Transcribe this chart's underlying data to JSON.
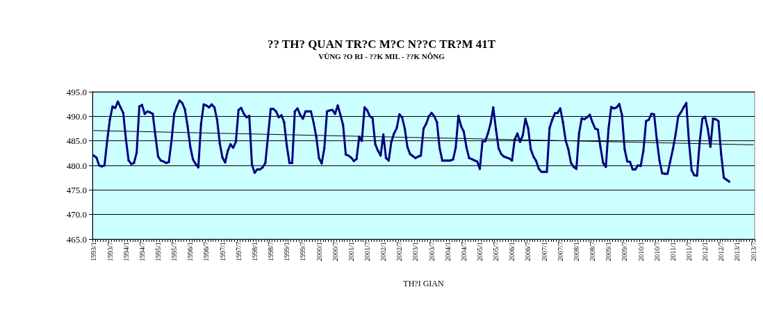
{
  "chart_data": {
    "type": "line",
    "title": "?? TH? QUAN TR?C M?C N??C TR?M 41T",
    "subtitle": "VÙNG ?O RI - ??K MIL - ??K NÔNG",
    "xlabel": "TH?I GIAN",
    "categories": [
      "1993/1",
      null,
      null,
      null,
      null,
      null,
      "1993/7",
      null,
      null,
      null,
      null,
      null,
      "1994/1",
      null,
      null,
      null,
      null,
      null,
      "1994/7",
      null,
      null,
      null,
      null,
      null,
      "1995/1",
      null,
      null,
      null,
      null,
      null,
      "1995/7",
      null,
      null,
      null,
      null,
      null,
      "1996/1",
      null,
      null,
      null,
      null,
      null,
      "1996/7",
      null,
      null,
      null,
      null,
      null,
      "1997/1",
      null,
      null,
      null,
      null,
      null,
      "1997/7",
      null,
      null,
      null,
      null,
      null,
      "1998/1",
      null,
      null,
      null,
      null,
      null,
      "1998/7",
      null,
      null,
      null,
      null,
      null,
      "1999/1",
      null,
      null,
      null,
      null,
      null,
      "1999/7",
      null,
      null,
      null,
      null,
      null,
      "2000/1",
      null,
      null,
      null,
      null,
      null,
      "2000/7",
      null,
      null,
      null,
      null,
      null,
      "2001/1",
      null,
      null,
      null,
      null,
      null,
      "2001/7",
      null,
      null,
      null,
      null,
      null,
      "2002/1",
      null,
      null,
      null,
      null,
      null,
      "2002/7",
      null,
      null,
      null,
      null,
      null,
      "2003/1",
      null,
      null,
      null,
      null,
      null,
      "2003/7",
      null,
      null,
      null,
      null,
      null,
      "2004/1",
      null,
      null,
      null,
      null,
      null,
      "2004/7",
      null,
      null,
      null,
      null,
      null,
      "2005/1",
      null,
      null,
      null,
      null,
      null,
      "2005/7",
      null,
      null,
      null,
      null,
      null,
      "2006/1",
      null,
      null,
      null,
      null,
      null,
      "2006/7",
      null,
      null,
      null,
      null,
      null,
      "2007/1",
      null,
      null,
      null,
      null,
      null,
      "2007/7",
      null,
      null,
      null,
      null,
      null,
      "2008/1",
      null,
      null,
      null,
      null,
      null,
      "2008/7",
      null,
      null,
      null,
      null,
      null,
      "2009/1",
      null,
      null,
      null,
      null,
      null,
      "2009/7",
      null,
      null,
      null,
      null,
      null,
      "2010/1",
      null,
      null,
      null,
      null,
      null,
      "2010/7",
      null,
      null,
      null,
      null,
      null,
      "2011/1",
      null,
      null,
      null,
      null,
      null,
      "2011/7",
      null,
      null,
      null,
      null,
      null,
      "2012/1",
      null,
      null,
      null,
      null,
      null,
      "2012/7",
      null,
      null,
      null,
      null,
      null,
      "2013/1",
      null,
      null,
      null,
      null,
      null,
      "2013/7"
    ],
    "series": [
      {
        "color": "#000080",
        "marker": "diamond",
        "values": [
          482.0,
          481.6,
          480.0,
          479.8,
          480.0,
          485.0,
          489.3,
          492.0,
          491.7,
          493.0,
          491.8,
          490.7,
          485.3,
          481.0,
          480.3,
          480.5,
          482.6,
          492.0,
          492.3,
          490.5,
          491.0,
          490.8,
          490.5,
          486.0,
          481.8,
          481.0,
          480.8,
          480.5,
          480.7,
          485.0,
          490.5,
          492.0,
          493.2,
          492.7,
          491.4,
          488.0,
          483.8,
          481.2,
          480.3,
          479.6,
          488.4,
          492.4,
          492.2,
          491.8,
          492.4,
          491.8,
          489.3,
          484.5,
          481.6,
          480.6,
          483.0,
          484.3,
          483.6,
          484.8,
          491.3,
          491.7,
          490.5,
          489.8,
          490.1,
          480.2,
          478.5,
          479.2,
          479.2,
          479.6,
          480.5,
          486.0,
          491.5,
          491.5,
          491.0,
          489.8,
          490.2,
          488.8,
          484.0,
          480.5,
          480.5,
          491.0,
          491.6,
          490.3,
          489.5,
          491.0,
          491.0,
          491.0,
          488.7,
          485.8,
          481.5,
          480.4,
          483.5,
          491.0,
          491.2,
          491.3,
          490.5,
          492.2,
          490.3,
          488.2,
          482.2,
          482.0,
          481.6,
          480.9,
          481.3,
          485.8,
          485.0,
          491.8,
          491.2,
          490.0,
          489.6,
          484.3,
          483.0,
          482.0,
          486.3,
          481.5,
          481.0,
          484.8,
          486.5,
          487.6,
          490.4,
          489.8,
          487.5,
          483.7,
          482.3,
          481.9,
          481.5,
          481.8,
          482.0,
          487.5,
          488.5,
          490.0,
          490.7,
          490.0,
          488.8,
          483.5,
          481.0,
          481.0,
          481.0,
          481.0,
          481.2,
          483.6,
          490.1,
          488.0,
          486.9,
          483.7,
          481.5,
          481.3,
          481.0,
          480.8,
          479.3,
          485.0,
          484.9,
          486.5,
          488.5,
          491.8,
          487.4,
          483.5,
          482.3,
          481.8,
          481.6,
          481.4,
          481.0,
          485.3,
          486.5,
          484.8,
          486.1,
          489.5,
          487.6,
          483.3,
          481.8,
          480.9,
          479.3,
          478.7,
          478.7,
          478.7,
          487.6,
          489.3,
          490.6,
          490.7,
          491.6,
          488.8,
          485.1,
          483.3,
          480.5,
          479.7,
          479.3,
          486.5,
          489.6,
          489.4,
          489.8,
          490.3,
          488.8,
          487.5,
          487.3,
          483.7,
          480.5,
          479.7,
          487.5,
          491.9,
          491.6,
          491.8,
          492.5,
          490.3,
          483.3,
          480.8,
          480.7,
          479.2,
          479.2,
          480.0,
          479.9,
          483.0,
          489.0,
          489.3,
          490.5,
          490.4,
          485.3,
          481.0,
          478.4,
          478.3,
          478.3,
          480.8,
          483.3,
          486.3,
          490.0,
          490.8,
          491.8,
          492.7,
          484.8,
          479.0,
          478.0,
          477.9,
          484.8,
          489.5,
          489.9,
          487.5,
          483.8,
          489.5,
          489.4,
          489.0,
          482.3,
          477.5,
          477.1,
          476.7,
          null,
          null,
          null,
          null,
          null,
          null,
          null,
          null,
          null
        ]
      },
      {
        "color": "#000000",
        "marker": "none",
        "x": [
          "1993/1",
          "2013/7"
        ],
        "values": [
          487.1,
          484.2
        ]
      }
    ],
    "ylim": [
      465,
      495
    ],
    "yticks": [
      {
        "value": 465,
        "label": "465.0"
      },
      {
        "value": 470,
        "label": "470.0"
      },
      {
        "value": 475,
        "label": "475.0"
      },
      {
        "value": 480,
        "label": "480.0"
      },
      {
        "value": 485,
        "label": "485.0"
      },
      {
        "value": 490,
        "label": "490.0"
      },
      {
        "value": 495,
        "label": "495.0"
      }
    ],
    "grid": "y"
  }
}
